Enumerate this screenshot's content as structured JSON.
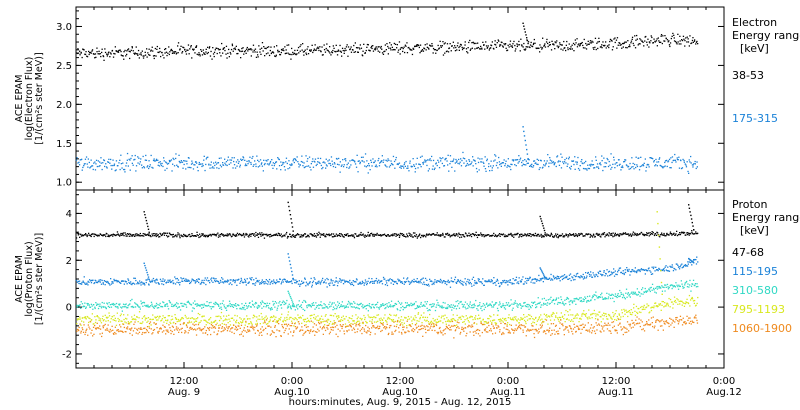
{
  "chart_data": [
    {
      "type": "scatter",
      "ylabel_lines": [
        "ACE EPAM",
        "log(Electron Flux)",
        "[1/(cm²s ster MeV)]"
      ],
      "ylim": [
        0.9,
        3.25
      ],
      "yticks": [
        "1.0",
        "1.5",
        "2.0",
        "2.5",
        "3.0"
      ],
      "ytick_values": [
        1.0,
        1.5,
        2.0,
        2.5,
        3.0
      ],
      "legend_title": [
        "Electron",
        "Energy ranges",
        "[keV]"
      ],
      "series": [
        {
          "name": "38-53",
          "color": "#000000",
          "x_hours": [
            0,
            6,
            12,
            18,
            24,
            30,
            36,
            42,
            48,
            54,
            60,
            66,
            69
          ],
          "y": [
            2.66,
            2.67,
            2.69,
            2.7,
            2.69,
            2.71,
            2.73,
            2.74,
            2.75,
            2.76,
            2.79,
            2.84,
            2.82
          ],
          "spread": 0.05,
          "spikes": [
            {
              "x_hours": 49.6,
              "y": 3.05
            }
          ]
        },
        {
          "name": "175-315",
          "color": "#1a82d8",
          "x_hours": [
            0,
            6,
            12,
            18,
            24,
            30,
            36,
            42,
            48,
            54,
            60,
            66,
            69
          ],
          "y": [
            1.25,
            1.26,
            1.25,
            1.26,
            1.25,
            1.26,
            1.25,
            1.26,
            1.25,
            1.26,
            1.25,
            1.26,
            1.25
          ],
          "spread": 0.06,
          "spikes": [
            {
              "x_hours": 49.6,
              "y": 1.72
            }
          ]
        }
      ]
    },
    {
      "type": "scatter",
      "ylabel_lines": [
        "ACE EPAM",
        "log(Proton Flux)",
        "[1/(cm²s ster MeV)]"
      ],
      "ylim": [
        -2.6,
        5.0
      ],
      "yticks": [
        "-2",
        "0",
        "2",
        "4"
      ],
      "ytick_values": [
        -2,
        0,
        2,
        4
      ],
      "legend_title": [
        "Proton",
        "Energy ranges",
        "[keV]"
      ],
      "series": [
        {
          "name": "47-68",
          "color": "#000000",
          "x_hours": [
            0,
            6,
            12,
            18,
            24,
            30,
            36,
            42,
            48,
            54,
            60,
            66,
            69
          ],
          "y": [
            3.1,
            3.1,
            3.1,
            3.1,
            3.1,
            3.1,
            3.1,
            3.1,
            3.1,
            3.1,
            3.12,
            3.15,
            3.2
          ],
          "spread": 0.06,
          "spikes": [
            {
              "x_hours": 7.5,
              "y": 4.1
            },
            {
              "x_hours": 23.5,
              "y": 4.5
            },
            {
              "x_hours": 51.5,
              "y": 3.9
            },
            {
              "x_hours": 68.0,
              "y": 4.4
            }
          ]
        },
        {
          "name": "115-195",
          "color": "#1a82d8",
          "x_hours": [
            0,
            6,
            12,
            18,
            24,
            30,
            36,
            42,
            48,
            54,
            60,
            66,
            69
          ],
          "y": [
            1.1,
            1.1,
            1.15,
            1.12,
            1.1,
            1.1,
            1.12,
            1.1,
            1.1,
            1.3,
            1.5,
            1.7,
            2.0
          ],
          "spread": 0.1,
          "spikes": [
            {
              "x_hours": 7.5,
              "y": 1.9
            },
            {
              "x_hours": 23.5,
              "y": 2.3
            },
            {
              "x_hours": 51.5,
              "y": 1.7
            },
            {
              "x_hours": 68.0,
              "y": 2.1
            }
          ]
        },
        {
          "name": "310-580",
          "color": "#2fd8c4",
          "x_hours": [
            0,
            6,
            12,
            18,
            24,
            30,
            36,
            42,
            48,
            54,
            60,
            66,
            69
          ],
          "y": [
            0.1,
            0.1,
            0.12,
            0.1,
            0.1,
            0.1,
            0.1,
            0.1,
            0.1,
            0.3,
            0.5,
            0.9,
            1.0
          ],
          "spread": 0.12,
          "spikes": [
            {
              "x_hours": 23.5,
              "y": 0.7
            }
          ]
        },
        {
          "name": "795-1193",
          "color": "#d8e81e",
          "x_hours": [
            0,
            6,
            12,
            18,
            24,
            30,
            36,
            42,
            48,
            54,
            60,
            66,
            69
          ],
          "y": [
            -0.5,
            -0.5,
            -0.5,
            -0.5,
            -0.5,
            -0.5,
            -0.5,
            -0.5,
            -0.5,
            -0.4,
            -0.3,
            0.2,
            0.3
          ],
          "spread": 0.15,
          "spikes": [
            {
              "x_hours": 64.5,
              "y": 4.1
            }
          ]
        },
        {
          "name": "1060-1900",
          "color": "#ef8a1e",
          "x_hours": [
            0,
            6,
            12,
            18,
            24,
            30,
            36,
            42,
            48,
            54,
            60,
            66,
            69
          ],
          "y": [
            -0.9,
            -0.9,
            -0.9,
            -0.9,
            -0.9,
            -0.9,
            -0.9,
            -0.9,
            -0.9,
            -0.9,
            -0.8,
            -0.6,
            -0.5
          ],
          "spread": 0.18,
          "spikes": []
        }
      ]
    }
  ],
  "x_axis": {
    "range_hours": [
      0,
      72
    ],
    "start": "Aug. 9, 2015 00:00",
    "xlabel": "hours:minutes, Aug.  9, 2015 - Aug. 12, 2015",
    "ticks": [
      {
        "hours": 12,
        "time": "12:00",
        "date": "Aug. 9"
      },
      {
        "hours": 24,
        "time": "0:00",
        "date": "Aug.10"
      },
      {
        "hours": 36,
        "time": "12:00",
        "date": "Aug.10"
      },
      {
        "hours": 48,
        "time": "0:00",
        "date": "Aug.11"
      },
      {
        "hours": 60,
        "time": "12:00",
        "date": "Aug.11"
      },
      {
        "hours": 72,
        "time": "0:00",
        "date": "Aug.12"
      }
    ]
  }
}
